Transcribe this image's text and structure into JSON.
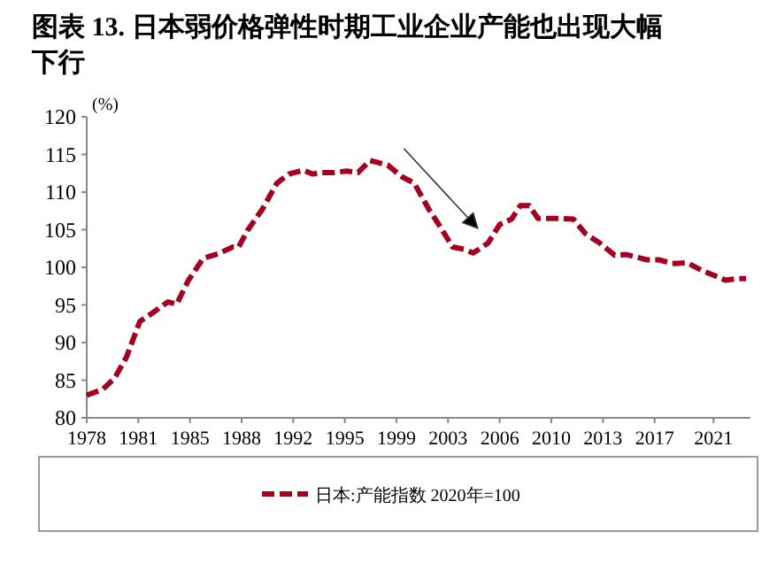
{
  "chart_data": {
    "type": "line",
    "title": "图表 13. 日本弱价格弹性时期工业企业产能也出现大幅下行",
    "ylabel": "(%)",
    "x": [
      1978.0,
      1979.1,
      1979.9,
      1980.7,
      1981.6,
      1982.5,
      1983.5,
      1984.1,
      1984.9,
      1985.9,
      1986.9,
      1987.9,
      1988.3,
      1988.9,
      1989.9,
      1990.9,
      1991.7,
      1992.7,
      1993.3,
      1993.9,
      1994.8,
      1995.6,
      1996.4,
      1997.2,
      1998.4,
      1999.4,
      2000.2,
      2001.2,
      2002.0,
      2002.8,
      2003.6,
      2004.2,
      2005.2,
      2006.0,
      2006.8,
      2007.4,
      2008.0,
      2008.6,
      2010.0,
      2011.0,
      2011.8,
      2012.8,
      2013.8,
      2014.6,
      2016.0,
      2016.8,
      2017.7,
      2018.7,
      2019.7,
      2021.3,
      2022.1,
      2022.7
    ],
    "series": [
      {
        "name": "日本:产能指数 2020年=100",
        "color": "#a50021",
        "values": [
          83.0,
          83.8,
          85.3,
          88.1,
          92.8,
          94.0,
          95.4,
          95.1,
          98.3,
          101.2,
          101.8,
          102.7,
          102.7,
          104.9,
          107.7,
          111.2,
          112.4,
          112.9,
          112.4,
          112.6,
          112.6,
          112.8,
          112.6,
          114.2,
          113.6,
          112.0,
          111.2,
          107.7,
          105.3,
          102.7,
          102.4,
          101.9,
          103.2,
          105.7,
          106.4,
          108.2,
          108.2,
          106.5,
          106.5,
          106.4,
          104.5,
          103.2,
          101.6,
          101.7,
          101.0,
          101.0,
          100.5,
          100.6,
          99.6,
          98.3,
          98.5,
          98.5
        ]
      }
    ],
    "xlim": [
      1978,
      2023
    ],
    "ylim": [
      80,
      120
    ],
    "xticks": [
      1978,
      {
        "value": 1981.5,
        "label": "1981"
      },
      1985,
      {
        "value": 1988.5,
        "label": "1988"
      },
      1992,
      {
        "value": 1995.5,
        "label": "1995"
      },
      1999,
      {
        "value": 2002.5,
        "label": "2003"
      },
      2006,
      {
        "value": 2009.5,
        "label": "2010"
      },
      2013,
      {
        "value": 2016.5,
        "label": "2017"
      },
      {
        "value": 2020.5,
        "label": "2021"
      }
    ],
    "yticks": [
      80,
      85,
      90,
      95,
      100,
      105,
      110,
      115,
      120
    ],
    "line_style": "dashed",
    "legend": "bottom",
    "grid": false
  }
}
